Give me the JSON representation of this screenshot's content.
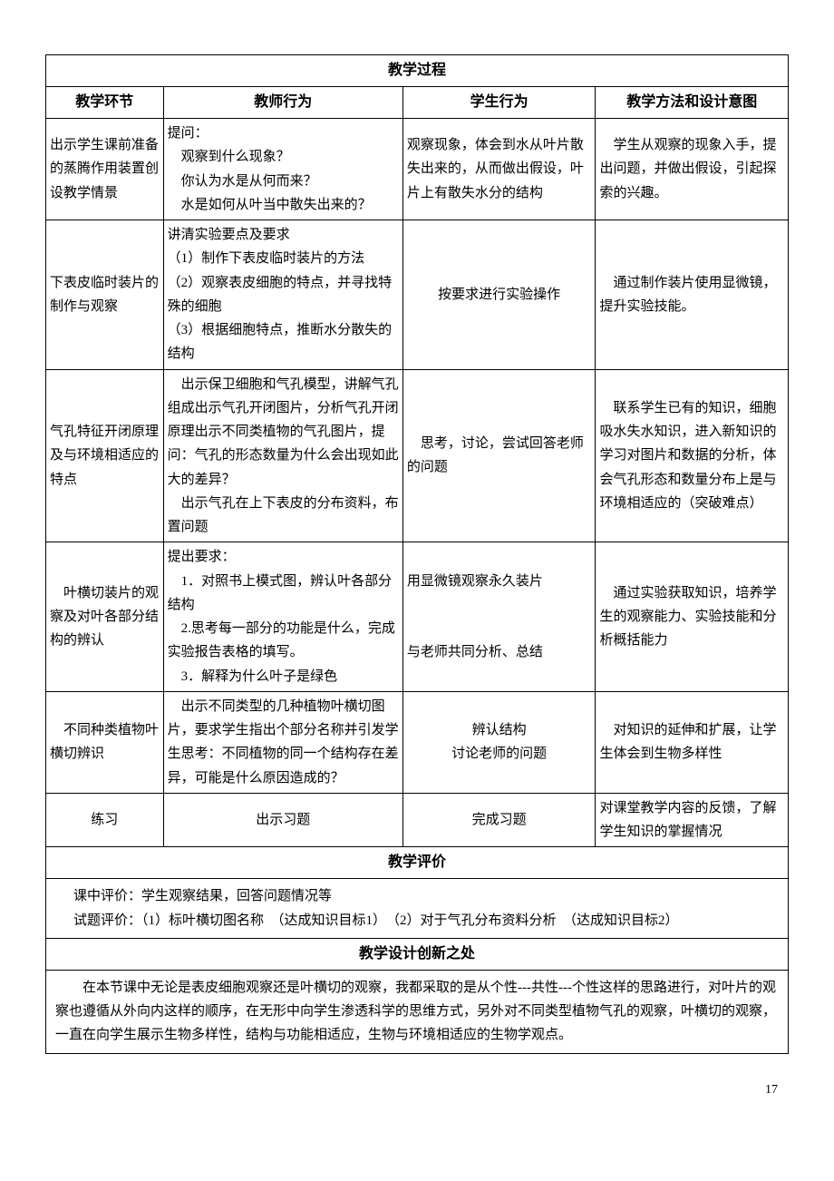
{
  "headers": {
    "process": "教学过程",
    "col1": "教学环节",
    "col2": "教师行为",
    "col3": "学生行为",
    "col4": "教学方法和设计意图",
    "evaluation": "教学评价",
    "innovation": "教学设计创新之处"
  },
  "rows": [
    {
      "segment": "出示学生课前准备的蒸腾作用装置创设教学情景",
      "teacher": "提问：\n　观察到什么现象？\n　你认为水是从何而来？\n　水是如何从叶当中散失出来的？",
      "student": "观察现象，体会到水从叶片散失出来的，从而做出假设，叶片上有散失水分的结构",
      "design": "　学生从观察的现象入手，提出问题，并做出假设，引起探索的兴趣。"
    },
    {
      "segment": "下表皮临时装片的制作与观察",
      "teacher": "讲清实验要点及要求\n（1）制作下表皮临时装片的方法\n（2）观察表皮细胞的特点，并寻找特殊的细胞\n（3）根据细胞特点，推断水分散失的结构",
      "student": "按要求进行实验操作",
      "design": "　通过制作装片使用显微镜，提升实验技能。"
    },
    {
      "segment": "气孔特征开闭原理及与环境相适应的特点",
      "teacher": "　出示保卫细胞和气孔模型，讲解气孔组成出示气孔开闭图片，分析气孔开闭原理出示不同类植物的气孔图片，提问：气孔的形态数量为什么会出现如此大的差异？\n　出示气孔在上下表皮的分布资料，布置问题",
      "student": "　思考，讨论，尝试回答老师的问题",
      "design": "　联系学生已有的知识，细胞吸水失水知识，进入新知识的学习对图片和数据的分析，体会气孔形态和数量分布上是与环境相适应的（突破难点）"
    },
    {
      "segment": "　叶横切装片的观察及对叶各部分结构的辨认",
      "teacher": "提出要求：\n　1．对照书上模式图，辨认叶各部分结构\n　2.思考每一部分的功能是什么，完成实验报告表格的填写。\n　3．解释为什么叶子是绿色",
      "student": "用显微镜观察永久装片\n\n\n与老师共同分析、总结",
      "design": "　通过实验获取知识，培养学生的观察能力、实验技能和分析概括能力"
    },
    {
      "segment": "　不同种类植物叶横切辨识",
      "teacher": "　出示不同类型的几种植物叶横切图片，要求学生指出个部分名称并引发学生思考：不同植物的同一个结构存在差异，可能是什么原因造成的？",
      "student": "辨认结构\n讨论老师的问题",
      "design": "　对知识的延伸和扩展，让学生体会到生物多样性"
    },
    {
      "segment": "练习",
      "teacher": "出示习题",
      "student": "完成习题",
      "design": "对课堂教学内容的反馈，了解学生知识的掌握情况"
    }
  ],
  "evaluation": {
    "line1": "课中评价：学生观察结果，回答问题情况等",
    "line2": "试题评价：（1）标叶横切图名称　（达成知识目标1）　（2）对于气孔分布资料分析　（达成知识目标2）"
  },
  "innovation": "　　在本节课中无论是表皮细胞观察还是叶横切的观察，我都采取的是从个性---共性---个性这样的思路进行，对叶片的观察也遵循从外向内这样的顺序，在无形中向学生渗透科学的思维方式，另外对不同类型植物气孔的观察，叶横切的观察，一直在向学生展示生物多样性，结构与功能相适应，生物与环境相适应的生物学观点。",
  "page_number": "17"
}
